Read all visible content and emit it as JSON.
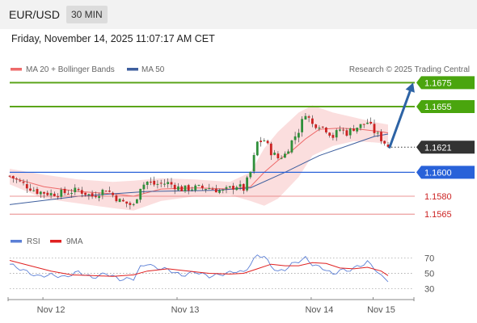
{
  "header": {
    "symbol": "EUR/USD",
    "interval": "30 MIN"
  },
  "timestamp": "Friday, November 14, 2025 11:07:17 AM CET",
  "legend": {
    "ma20_label": "MA 20 + Bollinger Bands",
    "ma50_label": "MA 50",
    "credit": "Research © 2025 Trading Central",
    "rsi_label": "RSI",
    "ma9_label": "9MA"
  },
  "colors": {
    "candle_up": "#2f8f3a",
    "candle_down": "#cc2222",
    "bollinger_fill": "#f9c8c8",
    "ma20": "#ee6a6a",
    "ma50": "#3e5f9e",
    "resistance": "#5ba51a",
    "pivot": "#2962d9",
    "support": "#e57373",
    "current_price": "#333333",
    "arrow": "#2d63a5",
    "rsi": "#5b7fd6",
    "rsi_ma": "#e02020"
  },
  "chart_data": [
    {
      "type": "candlestick",
      "title": "EUR/USD 30 MIN",
      "x": [
        "Nov 12",
        "Nov 13",
        "Nov 14",
        "Nov 15"
      ],
      "ylim": [
        1.1555,
        1.168
      ],
      "levels": [
        {
          "label": "1.1675",
          "value": 1.1675,
          "kind": "resistance"
        },
        {
          "label": "1.1655",
          "value": 1.1655,
          "kind": "resistance"
        },
        {
          "label": "1.1621",
          "value": 1.1621,
          "kind": "current"
        },
        {
          "label": "1.1600",
          "value": 1.16,
          "kind": "pivot"
        },
        {
          "label": "1.1580",
          "value": 1.158,
          "kind": "support"
        },
        {
          "label": "1.1565",
          "value": 1.1565,
          "kind": "support"
        }
      ],
      "projection": {
        "from": 1.1621,
        "to": 1.1675
      },
      "price_path": [
        [
          0,
          1.1597
        ],
        [
          4,
          1.159
        ],
        [
          8,
          1.1584
        ],
        [
          12,
          1.1582
        ],
        [
          16,
          1.1583
        ],
        [
          20,
          1.1585
        ],
        [
          24,
          1.158
        ],
        [
          28,
          1.1586
        ],
        [
          32,
          1.1576
        ],
        [
          36,
          1.1572
        ],
        [
          38,
          1.1588
        ],
        [
          40,
          1.1592
        ],
        [
          42,
          1.159
        ],
        [
          46,
          1.1591
        ],
        [
          50,
          1.1586
        ],
        [
          54,
          1.1587
        ],
        [
          58,
          1.1587
        ],
        [
          62,
          1.1584
        ],
        [
          66,
          1.1589
        ],
        [
          68,
          1.1586
        ],
        [
          70,
          1.16
        ],
        [
          72,
          1.1625
        ],
        [
          74,
          1.1627
        ],
        [
          76,
          1.1617
        ],
        [
          78,
          1.1612
        ],
        [
          80,
          1.1615
        ],
        [
          82,
          1.1626
        ],
        [
          84,
          1.1635
        ],
        [
          86,
          1.165
        ],
        [
          88,
          1.164
        ],
        [
          90,
          1.164
        ],
        [
          92,
          1.1636
        ],
        [
          94,
          1.163
        ],
        [
          96,
          1.1636
        ],
        [
          98,
          1.1633
        ],
        [
          100,
          1.1637
        ],
        [
          102,
          1.1639
        ],
        [
          104,
          1.1642
        ],
        [
          106,
          1.1634
        ],
        [
          108,
          1.1628
        ],
        [
          110,
          1.1622
        ]
      ],
      "ma20_path": [
        [
          0,
          1.1596
        ],
        [
          10,
          1.1588
        ],
        [
          20,
          1.1584
        ],
        [
          30,
          1.1582
        ],
        [
          36,
          1.158
        ],
        [
          44,
          1.1586
        ],
        [
          54,
          1.1587
        ],
        [
          64,
          1.1586
        ],
        [
          70,
          1.1588
        ],
        [
          74,
          1.16
        ],
        [
          78,
          1.161
        ],
        [
          82,
          1.1618
        ],
        [
          86,
          1.1628
        ],
        [
          90,
          1.1636
        ],
        [
          96,
          1.1637
        ],
        [
          102,
          1.1636
        ],
        [
          108,
          1.1634
        ],
        [
          110,
          1.1633
        ]
      ],
      "ma50_path": [
        [
          0,
          1.1573
        ],
        [
          20,
          1.158
        ],
        [
          40,
          1.1584
        ],
        [
          60,
          1.1585
        ],
        [
          70,
          1.1587
        ],
        [
          80,
          1.16
        ],
        [
          90,
          1.1614
        ],
        [
          100,
          1.1624
        ],
        [
          106,
          1.163
        ],
        [
          110,
          1.1632
        ]
      ],
      "bb_upper_path": [
        [
          0,
          1.1603
        ],
        [
          10,
          1.1598
        ],
        [
          20,
          1.1594
        ],
        [
          30,
          1.1592
        ],
        [
          36,
          1.1593
        ],
        [
          44,
          1.1595
        ],
        [
          54,
          1.1594
        ],
        [
          64,
          1.1592
        ],
        [
          70,
          1.16
        ],
        [
          74,
          1.162
        ],
        [
          78,
          1.1634
        ],
        [
          84,
          1.165
        ],
        [
          88,
          1.1656
        ],
        [
          94,
          1.165
        ],
        [
          100,
          1.1646
        ],
        [
          106,
          1.1642
        ],
        [
          110,
          1.164
        ]
      ],
      "bb_lower_path": [
        [
          0,
          1.159
        ],
        [
          10,
          1.1578
        ],
        [
          20,
          1.1574
        ],
        [
          30,
          1.157
        ],
        [
          36,
          1.1568
        ],
        [
          44,
          1.1576
        ],
        [
          54,
          1.158
        ],
        [
          64,
          1.1581
        ],
        [
          70,
          1.1576
        ],
        [
          74,
          1.1572
        ],
        [
          78,
          1.1578
        ],
        [
          84,
          1.1596
        ],
        [
          88,
          1.1614
        ],
        [
          94,
          1.1622
        ],
        [
          100,
          1.1626
        ],
        [
          106,
          1.1625
        ],
        [
          110,
          1.1624
        ]
      ]
    },
    {
      "type": "line",
      "title": "RSI",
      "ylim": [
        25,
        75
      ],
      "yticks": [
        "70",
        "50",
        "30"
      ],
      "series": [
        {
          "name": "RSI",
          "values": [
            [
              0,
              62
            ],
            [
              4,
              54
            ],
            [
              8,
              46
            ],
            [
              12,
              48
            ],
            [
              16,
              45
            ],
            [
              20,
              52
            ],
            [
              24,
              44
            ],
            [
              28,
              50
            ],
            [
              32,
              42
            ],
            [
              36,
              43
            ],
            [
              38,
              58
            ],
            [
              40,
              63
            ],
            [
              42,
              58
            ],
            [
              46,
              55
            ],
            [
              50,
              47
            ],
            [
              54,
              52
            ],
            [
              58,
              46
            ],
            [
              62,
              49
            ],
            [
              66,
              53
            ],
            [
              68,
              51
            ],
            [
              70,
              62
            ],
            [
              72,
              74
            ],
            [
              74,
              72
            ],
            [
              76,
              60
            ],
            [
              78,
              52
            ],
            [
              80,
              55
            ],
            [
              82,
              62
            ],
            [
              84,
              66
            ],
            [
              86,
              70
            ],
            [
              88,
              62
            ],
            [
              90,
              58
            ],
            [
              92,
              55
            ],
            [
              94,
              48
            ],
            [
              96,
              55
            ],
            [
              98,
              53
            ],
            [
              100,
              57
            ],
            [
              102,
              60
            ],
            [
              104,
              65
            ],
            [
              106,
              57
            ],
            [
              108,
              46
            ],
            [
              110,
              41
            ]
          ]
        },
        {
          "name": "9MA",
          "values": [
            [
              0,
              67
            ],
            [
              6,
              60
            ],
            [
              12,
              53
            ],
            [
              18,
              48
            ],
            [
              24,
              47
            ],
            [
              30,
              46
            ],
            [
              36,
              48
            ],
            [
              40,
              53
            ],
            [
              46,
              56
            ],
            [
              52,
              53
            ],
            [
              58,
              50
            ],
            [
              64,
              49
            ],
            [
              68,
              50
            ],
            [
              72,
              56
            ],
            [
              76,
              62
            ],
            [
              80,
              60
            ],
            [
              84,
              60
            ],
            [
              88,
              64
            ],
            [
              92,
              63
            ],
            [
              96,
              57
            ],
            [
              100,
              56
            ],
            [
              104,
              58
            ],
            [
              108,
              53
            ],
            [
              110,
              47
            ]
          ]
        }
      ]
    }
  ]
}
